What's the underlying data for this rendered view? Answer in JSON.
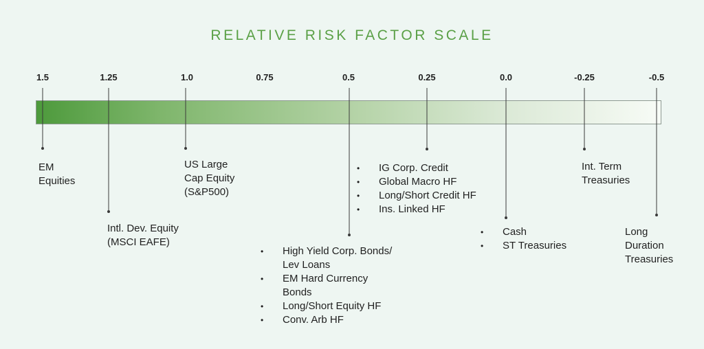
{
  "title": "RELATIVE RISK FACTOR SCALE",
  "scale": {
    "ticks": [
      "1.5",
      "1.25",
      "1.0",
      "0.75",
      "0.5",
      "0.25",
      "0.0",
      "-0.25",
      "-0.5"
    ],
    "gradient_start": "#4d9a3c",
    "gradient_end": "#f7fbf6"
  },
  "colors": {
    "title": "#5aa046",
    "text": "#1f1f1f",
    "background": "#eef6f2"
  },
  "bullet_glyph": "•",
  "labels": {
    "em_equities": [
      "EM",
      "Equities"
    ],
    "intl_dev_equity": [
      "Intl. Dev. Equity",
      "(MSCI EAFE)"
    ],
    "us_large_cap": [
      "US Large",
      "Cap Equity",
      "(S&P500)"
    ],
    "group_05": [
      [
        "High Yield Corp. Bonds/",
        "Lev Loans"
      ],
      [
        "EM Hard Currency",
        "Bonds"
      ],
      [
        "Long/Short Equity HF"
      ],
      [
        "Conv. Arb HF"
      ]
    ],
    "group_025": [
      "IG Corp. Credit",
      "Global Macro HF",
      "Long/Short Credit HF",
      "Ins. Linked HF"
    ],
    "group_00": [
      "Cash",
      "ST Treasuries"
    ],
    "int_term": [
      "Int. Term",
      "Treasuries"
    ],
    "long_duration": [
      "Long",
      "Duration",
      "Treasuries"
    ]
  }
}
